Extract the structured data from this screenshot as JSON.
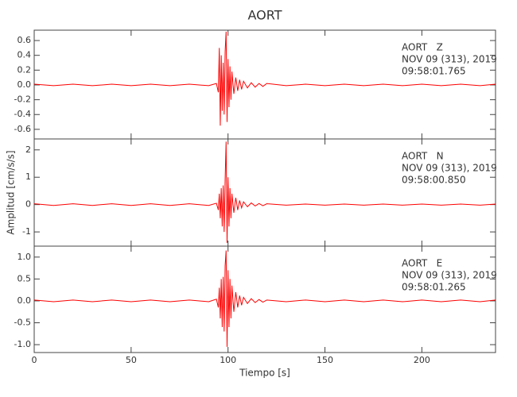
{
  "chart_data": [
    {
      "type": "line",
      "title": "AORT",
      "annotations": [
        "AORT   Z",
        "NOV 09 (313), 2019",
        "09:58:01.765"
      ],
      "xlim": [
        0,
        238
      ],
      "xticks": [
        0,
        50,
        100,
        150,
        200
      ],
      "ylim": [
        -0.73,
        0.74
      ],
      "yticks": [
        -0.6,
        -0.4,
        -0.2,
        {
          "value": 0,
          "label": "0.0"
        },
        0.2,
        0.4,
        0.6
      ],
      "series": [
        {
          "color": "#ff0000",
          "x": [
            0,
            10,
            20,
            30,
            40,
            50,
            60,
            70,
            80,
            90,
            94,
            95,
            95.5,
            96,
            96.5,
            97,
            97.5,
            98,
            98.5,
            99,
            99.5,
            100,
            100.5,
            101,
            101.5,
            102,
            103,
            104,
            105,
            106,
            107,
            108,
            110,
            112,
            114,
            116,
            118,
            120,
            130,
            140,
            150,
            160,
            170,
            180,
            190,
            200,
            210,
            220,
            230,
            238
          ],
          "values": [
            0.01,
            -0.01,
            0.01,
            -0.01,
            0.01,
            -0.01,
            0.01,
            -0.01,
            0.01,
            -0.01,
            0.02,
            -0.1,
            0.5,
            -0.55,
            0.4,
            -0.35,
            0.3,
            -0.4,
            0.45,
            0.72,
            -0.5,
            0.35,
            -0.3,
            0.25,
            -0.2,
            0.18,
            -0.12,
            0.1,
            -0.08,
            0.07,
            -0.06,
            0.05,
            -0.04,
            0.03,
            -0.03,
            0.02,
            -0.02,
            0.02,
            -0.01,
            0.01,
            -0.01,
            0.01,
            -0.01,
            0.01,
            -0.01,
            0.01,
            -0.01,
            0.01,
            -0.01,
            0.01
          ]
        }
      ]
    },
    {
      "type": "line",
      "ylabel": "Amplitud [cm/s/s]",
      "annotations": [
        "AORT   N",
        "NOV 09 (313), 2019",
        "09:58:00.850"
      ],
      "xlim": [
        0,
        238
      ],
      "xticks": [
        0,
        50,
        100,
        150,
        200
      ],
      "ylim": [
        -1.52,
        2.4
      ],
      "yticks": [
        -1,
        0,
        1,
        2
      ],
      "series": [
        {
          "color": "#ff0000",
          "x": [
            0,
            10,
            20,
            30,
            40,
            50,
            60,
            70,
            80,
            90,
            94,
            95,
            95.5,
            96,
            96.5,
            97,
            97.5,
            98,
            98.5,
            99,
            99.5,
            100,
            100.5,
            101,
            101.5,
            102,
            103,
            104,
            105,
            106,
            107,
            108,
            110,
            112,
            114,
            116,
            118,
            120,
            130,
            140,
            150,
            160,
            170,
            180,
            190,
            200,
            210,
            220,
            230,
            238
          ],
          "values": [
            0.03,
            -0.03,
            0.03,
            -0.03,
            0.03,
            -0.03,
            0.03,
            -0.03,
            0.03,
            -0.03,
            0.05,
            -0.2,
            0.4,
            -0.5,
            0.6,
            -0.8,
            0.7,
            -1.0,
            0.9,
            2.3,
            -1.4,
            1.0,
            -0.8,
            0.6,
            -0.5,
            0.4,
            -0.3,
            0.25,
            -0.2,
            0.15,
            -0.12,
            0.1,
            -0.08,
            0.06,
            -0.05,
            0.04,
            -0.04,
            0.03,
            -0.02,
            0.02,
            -0.02,
            0.02,
            -0.02,
            0.02,
            -0.02,
            0.02,
            -0.02,
            0.02,
            -0.02,
            0.02
          ]
        }
      ]
    },
    {
      "type": "line",
      "xlabel": "Tiempo [s]",
      "annotations": [
        "AORT   E",
        "NOV 09 (313), 2019",
        "09:58:01.265"
      ],
      "xlim": [
        0,
        238
      ],
      "xticks": [
        0,
        50,
        100,
        150,
        200
      ],
      "ylim": [
        -1.18,
        1.25
      ],
      "yticks": [
        {
          "value": -1,
          "label": "-1.0"
        },
        -0.5,
        {
          "value": 0,
          "label": "0.0"
        },
        0.5,
        {
          "value": 1,
          "label": "1.0"
        }
      ],
      "series": [
        {
          "color": "#ff0000",
          "x": [
            0,
            10,
            20,
            30,
            40,
            50,
            60,
            70,
            80,
            90,
            94,
            95,
            95.5,
            96,
            96.5,
            97,
            97.5,
            98,
            98.5,
            99,
            99.5,
            100,
            100.5,
            101,
            101.5,
            102,
            103,
            104,
            105,
            106,
            107,
            108,
            110,
            112,
            114,
            116,
            118,
            120,
            130,
            140,
            150,
            160,
            170,
            180,
            190,
            200,
            210,
            220,
            230,
            238
          ],
          "values": [
            0.02,
            -0.02,
            0.02,
            -0.02,
            0.02,
            -0.02,
            0.02,
            -0.02,
            0.02,
            -0.02,
            0.04,
            -0.15,
            0.3,
            -0.4,
            0.5,
            -0.6,
            0.55,
            -0.7,
            0.8,
            1.15,
            -1.05,
            0.7,
            -0.6,
            0.5,
            -0.4,
            0.35,
            -0.25,
            0.2,
            -0.15,
            0.12,
            -0.1,
            0.08,
            -0.06,
            0.05,
            -0.04,
            0.03,
            -0.03,
            0.02,
            -0.02,
            0.02,
            -0.02,
            0.02,
            -0.02,
            0.02,
            -0.02,
            0.02,
            -0.02,
            0.02,
            -0.02,
            0.02
          ]
        }
      ]
    }
  ]
}
